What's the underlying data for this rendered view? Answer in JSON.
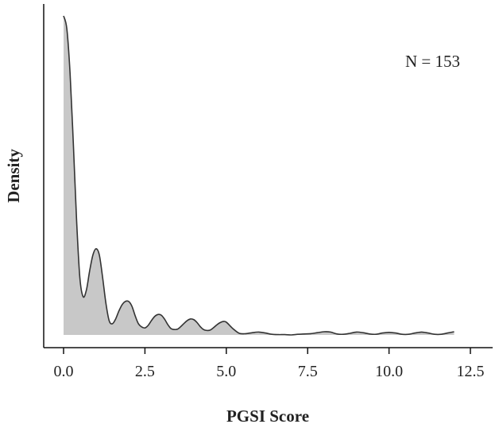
{
  "chart_data": {
    "type": "area",
    "title": "",
    "xlabel": "PGSI Score",
    "ylabel": "Density",
    "annotation": "N = 153",
    "xlim": [
      -0.5,
      12.5
    ],
    "ylim": [
      0,
      1.0
    ],
    "x_ticks": [
      0.0,
      2.5,
      5.0,
      7.5,
      10.0,
      12.5
    ],
    "x_tick_labels": [
      "0.0",
      "2.5",
      "5.0",
      "7.5",
      "10.0",
      "12.5"
    ],
    "y_ticks_shown": false,
    "grid": false,
    "legend": "none",
    "fill_color": "#c8c8c8",
    "line_color": "#333333",
    "series": [
      {
        "x": [
          0.0,
          0.1,
          0.2,
          0.3,
          0.4,
          0.5,
          0.6,
          0.7,
          0.8,
          0.9,
          1.0,
          1.1,
          1.2,
          1.3,
          1.4,
          1.5,
          1.6,
          1.7,
          1.8,
          1.9,
          2.0,
          2.1,
          2.2,
          2.3,
          2.4,
          2.5,
          2.6,
          2.7,
          2.8,
          2.9,
          3.0,
          3.1,
          3.2,
          3.3,
          3.4,
          3.5,
          3.6,
          3.7,
          3.8,
          3.9,
          4.0,
          4.1,
          4.2,
          4.3,
          4.4,
          4.5,
          4.6,
          4.7,
          4.8,
          4.9,
          5.0,
          5.2,
          5.4,
          5.6,
          5.8,
          6.0,
          6.2,
          6.4,
          6.6,
          6.8,
          7.0,
          7.2,
          7.4,
          7.6,
          7.8,
          8.0,
          8.2,
          8.4,
          8.6,
          8.8,
          9.0,
          9.2,
          9.4,
          9.6,
          9.8,
          10.0,
          10.2,
          10.4,
          10.6,
          10.8,
          11.0,
          11.2,
          11.4,
          11.6,
          11.8,
          12.0
        ],
        "y": [
          1.0,
          0.96,
          0.82,
          0.6,
          0.36,
          0.18,
          0.12,
          0.14,
          0.2,
          0.25,
          0.27,
          0.25,
          0.18,
          0.1,
          0.045,
          0.035,
          0.05,
          0.075,
          0.095,
          0.105,
          0.105,
          0.09,
          0.06,
          0.035,
          0.025,
          0.022,
          0.03,
          0.045,
          0.058,
          0.064,
          0.062,
          0.05,
          0.033,
          0.02,
          0.017,
          0.018,
          0.026,
          0.036,
          0.045,
          0.05,
          0.048,
          0.039,
          0.026,
          0.017,
          0.014,
          0.015,
          0.022,
          0.031,
          0.038,
          0.042,
          0.04,
          0.02,
          0.005,
          0.004,
          0.007,
          0.009,
          0.006,
          0.002,
          0.001,
          0.001,
          0.0,
          0.002,
          0.003,
          0.004,
          0.007,
          0.01,
          0.009,
          0.003,
          0.002,
          0.005,
          0.009,
          0.007,
          0.003,
          0.002,
          0.006,
          0.008,
          0.006,
          0.002,
          0.002,
          0.006,
          0.009,
          0.006,
          0.002,
          0.002,
          0.006,
          0.01
        ]
      }
    ]
  }
}
